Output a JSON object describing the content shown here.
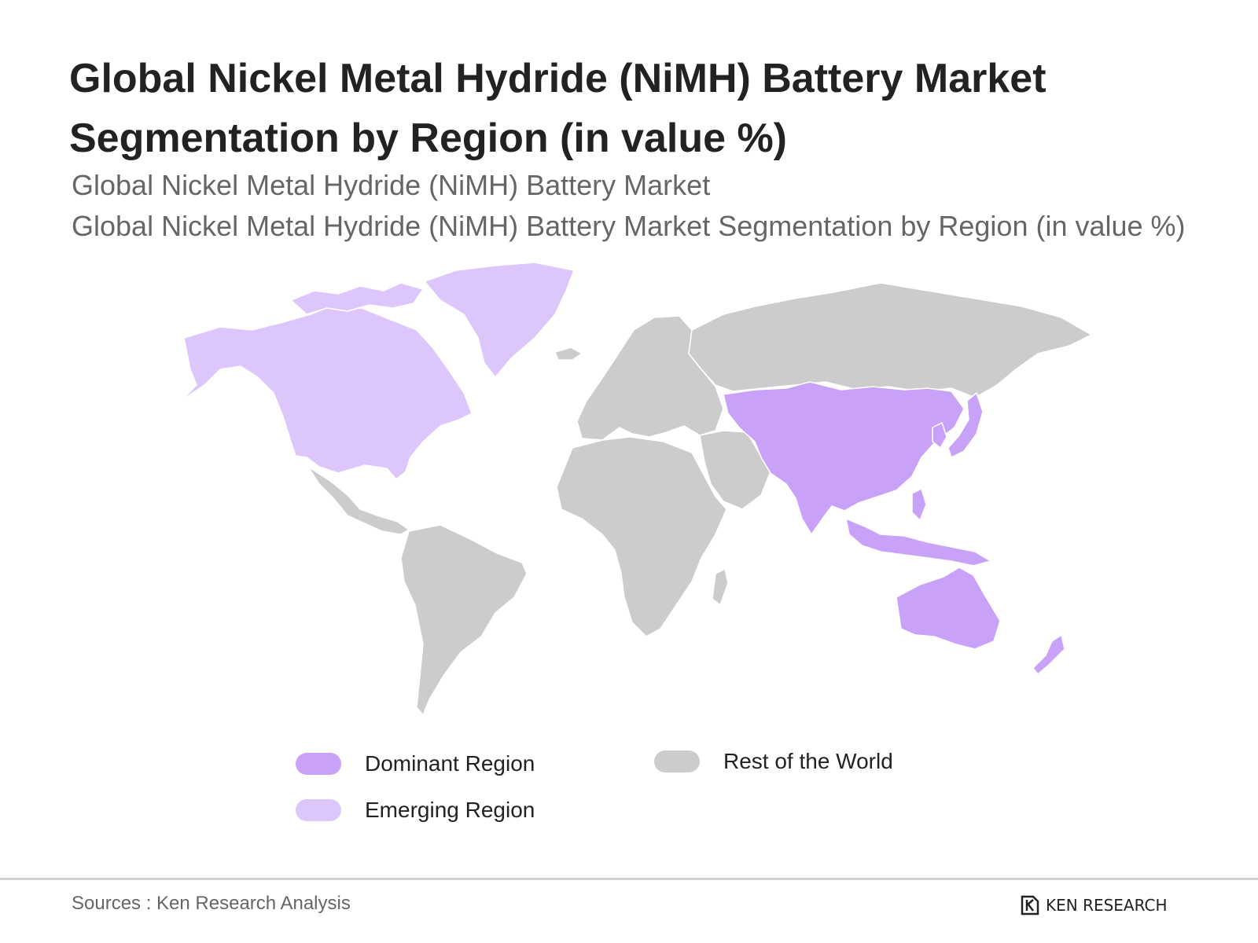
{
  "title": "Global Nickel Metal Hydride (NiMH) Battery Market Segmentation by Region (in value %)",
  "subtitle_line1": "Global Nickel Metal Hydride (NiMH) Battery Market",
  "subtitle_line2": "Global Nickel Metal Hydride (NiMH) Battery Market Segmentation by Region (in value %)",
  "colors": {
    "dominant": "#c8a2f8",
    "emerging": "#dcc6fb",
    "rest": "#cccccc"
  },
  "regions": {
    "dominant": [
      "China",
      "India",
      "Japan",
      "South Korea",
      "Southeast Asia",
      "Australia",
      "New Zealand",
      "Central Asia"
    ],
    "emerging": [
      "North America",
      "Greenland"
    ],
    "rest": [
      "South America",
      "Central America",
      "Europe",
      "Africa",
      "Middle East",
      "Russia"
    ]
  },
  "legend": [
    {
      "label": "Dominant Region",
      "color_key": "dominant"
    },
    {
      "label": "Emerging Region",
      "color_key": "emerging"
    },
    {
      "label": "Rest of the World",
      "color_key": "rest"
    }
  ],
  "footer": {
    "source": "Sources : Ken Research Analysis",
    "logo_text": "KEN RESEARCH"
  }
}
